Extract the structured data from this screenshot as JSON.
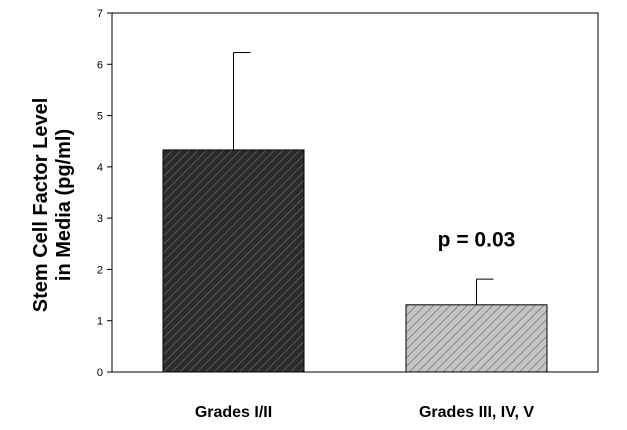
{
  "chart_data": {
    "type": "bar",
    "title": "",
    "xlabel": "",
    "ylabel": [
      "Stem Cell Factor Level",
      "in Media (pg/ml)"
    ],
    "ylim": [
      0,
      7
    ],
    "yticks": [
      0,
      1,
      2,
      3,
      4,
      5,
      6,
      7
    ],
    "grid": false,
    "categories": [
      "Grades I/II",
      "Grades III, IV, V"
    ],
    "values": [
      4.33,
      1.31
    ],
    "error_upper": [
      1.9,
      0.5
    ],
    "bar_colors": [
      "#2b2b2b",
      "#a6a6a6"
    ],
    "bar_pattern": "diagonal-hatch",
    "annotations": [
      {
        "text": "p = 0.03",
        "category_index": 1,
        "y": 2.45
      }
    ]
  }
}
